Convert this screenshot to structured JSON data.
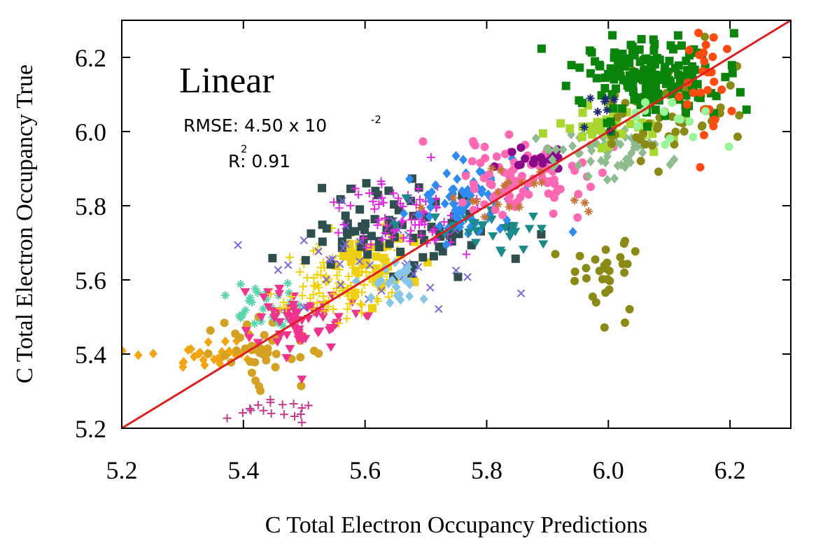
{
  "chart_data": {
    "type": "scatter",
    "title": "Linear",
    "xlabel": "C Total Electron Occupancy Predictions",
    "ylabel": "C Total Electron Occupancy True",
    "xlim": [
      5.2,
      6.3
    ],
    "ylim": [
      5.2,
      6.3
    ],
    "xticks": [
      5.2,
      5.4,
      5.6,
      5.8,
      6.0,
      6.2
    ],
    "xtick_labels": [
      "5.2",
      "5.4",
      "5.6",
      "5.8",
      "6.0",
      "6.2"
    ],
    "yticks": [
      5.2,
      5.4,
      5.6,
      5.8,
      6.0,
      6.2
    ],
    "ytick_labels": [
      "5.2",
      "5.4",
      "5.6",
      "5.8",
      "6.0",
      "6.2"
    ],
    "grid": false,
    "legend": "none",
    "metrics": {
      "rmse_label": "RMSE: 4.50 x 10",
      "rmse_exponent": "-2",
      "r2_label": "R",
      "r2_exponent": "2",
      "r2_value": ": 0.91"
    },
    "reference_line": {
      "name": "y = x",
      "color": "#dd1f1f",
      "points": [
        [
          5.2,
          5.2
        ],
        [
          6.3,
          6.3
        ]
      ]
    },
    "series": [
      {
        "name": "orange diamonds",
        "marker": "diamond",
        "color": "#f2a413",
        "center": [
          5.33,
          5.39
        ],
        "spread": [
          0.045,
          0.025
        ],
        "n": 30,
        "seed": 11
      },
      {
        "name": "goldenrod hexagons",
        "marker": "circle",
        "color": "#d4a122",
        "center": [
          5.43,
          5.42
        ],
        "spread": [
          0.035,
          0.045
        ],
        "n": 45,
        "seed": 12
      },
      {
        "name": "magenta plus low",
        "marker": "plus",
        "color": "#c43a8c",
        "center": [
          5.44,
          5.255
        ],
        "spread": [
          0.03,
          0.02
        ],
        "n": 18,
        "seed": 13
      },
      {
        "name": "aquamarine asterisks",
        "marker": "asterisk",
        "color": "#58d6ab",
        "center": [
          5.45,
          5.52
        ],
        "spread": [
          0.035,
          0.035
        ],
        "n": 30,
        "seed": 14
      },
      {
        "name": "deep pink triangles",
        "marker": "tri-down",
        "color": "#f0338c",
        "center": [
          5.5,
          5.5
        ],
        "spread": [
          0.04,
          0.04
        ],
        "n": 70,
        "seed": 15
      },
      {
        "name": "gold crosses",
        "marker": "plus",
        "color": "#f0d000",
        "center": [
          5.57,
          5.6
        ],
        "spread": [
          0.05,
          0.045
        ],
        "n": 110,
        "seed": 16
      },
      {
        "name": "gold squares",
        "marker": "square",
        "color": "#eecf12",
        "center": [
          5.62,
          5.66
        ],
        "spread": [
          0.04,
          0.04
        ],
        "n": 40,
        "seed": 17
      },
      {
        "name": "dark slate squares",
        "marker": "square",
        "color": "#2f4f4f",
        "center": [
          5.66,
          5.74
        ],
        "spread": [
          0.08,
          0.06
        ],
        "n": 80,
        "seed": 18
      },
      {
        "name": "slate blue crosses",
        "marker": "cross",
        "color": "#7b68d8",
        "center": [
          5.6,
          5.66
        ],
        "spread": [
          0.12,
          0.07
        ],
        "n": 35,
        "seed": 19
      },
      {
        "name": "light blue diamonds",
        "marker": "diamond",
        "color": "#87c6e8",
        "center": [
          5.65,
          5.59
        ],
        "spread": [
          0.03,
          0.03
        ],
        "n": 25,
        "seed": 20
      },
      {
        "name": "magenta plus mid",
        "marker": "plus",
        "color": "#e027e0",
        "center": [
          5.68,
          5.78
        ],
        "spread": [
          0.06,
          0.05
        ],
        "n": 70,
        "seed": 21
      },
      {
        "name": "dodger blue diamonds",
        "marker": "diamond",
        "color": "#2e8cf0",
        "center": [
          5.77,
          5.81
        ],
        "spread": [
          0.055,
          0.05
        ],
        "n": 70,
        "seed": 22
      },
      {
        "name": "teal triangles",
        "marker": "tri-down",
        "color": "#1a8a8a",
        "center": [
          5.8,
          5.74
        ],
        "spread": [
          0.05,
          0.03
        ],
        "n": 30,
        "seed": 23
      },
      {
        "name": "hot pink circles",
        "marker": "circle",
        "color": "#ff69b4",
        "center": [
          5.86,
          5.88
        ],
        "spread": [
          0.06,
          0.05
        ],
        "n": 90,
        "seed": 24
      },
      {
        "name": "purple circles",
        "marker": "circle",
        "color": "#8b0a8b",
        "center": [
          5.89,
          5.93
        ],
        "spread": [
          0.03,
          0.015
        ],
        "n": 20,
        "seed": 25
      },
      {
        "name": "sienna asterisks",
        "marker": "asterisk",
        "color": "#c8743a",
        "center": [
          5.84,
          5.84
        ],
        "spread": [
          0.06,
          0.04
        ],
        "n": 20,
        "seed": 26
      },
      {
        "name": "dark sea green diamonds",
        "marker": "diamond",
        "color": "#8fbc8f",
        "center": [
          6.0,
          5.95
        ],
        "spread": [
          0.05,
          0.03
        ],
        "n": 60,
        "seed": 27
      },
      {
        "name": "yellow green squares",
        "marker": "square",
        "color": "#a8d830",
        "center": [
          6.0,
          6.02
        ],
        "spread": [
          0.05,
          0.025
        ],
        "n": 40,
        "seed": 28
      },
      {
        "name": "olive circles",
        "marker": "circle",
        "color": "#8a8a16",
        "center": [
          6.1,
          6.05
        ],
        "spread": [
          0.06,
          0.07
        ],
        "n": 60,
        "seed": 29
      },
      {
        "name": "olive circles low",
        "marker": "circle",
        "color": "#8a8a16",
        "center": [
          5.99,
          5.62
        ],
        "spread": [
          0.03,
          0.07
        ],
        "n": 30,
        "seed": 30
      },
      {
        "name": "green squares",
        "marker": "square",
        "color": "#0a840a",
        "center": [
          6.07,
          6.15
        ],
        "spread": [
          0.06,
          0.05
        ],
        "n": 170,
        "seed": 31
      },
      {
        "name": "orange red circles",
        "marker": "circle",
        "color": "#ff4a10",
        "center": [
          6.16,
          6.12
        ],
        "spread": [
          0.03,
          0.07
        ],
        "n": 30,
        "seed": 32
      },
      {
        "name": "light green circles",
        "marker": "circle",
        "color": "#98f598",
        "center": [
          6.07,
          6.02
        ],
        "spread": [
          0.05,
          0.04
        ],
        "n": 15,
        "seed": 33
      },
      {
        "name": "navy asterisks",
        "marker": "asterisk",
        "color": "#1a2a70",
        "center": [
          5.98,
          6.05
        ],
        "spread": [
          0.04,
          0.03
        ],
        "n": 8,
        "seed": 34
      }
    ]
  }
}
